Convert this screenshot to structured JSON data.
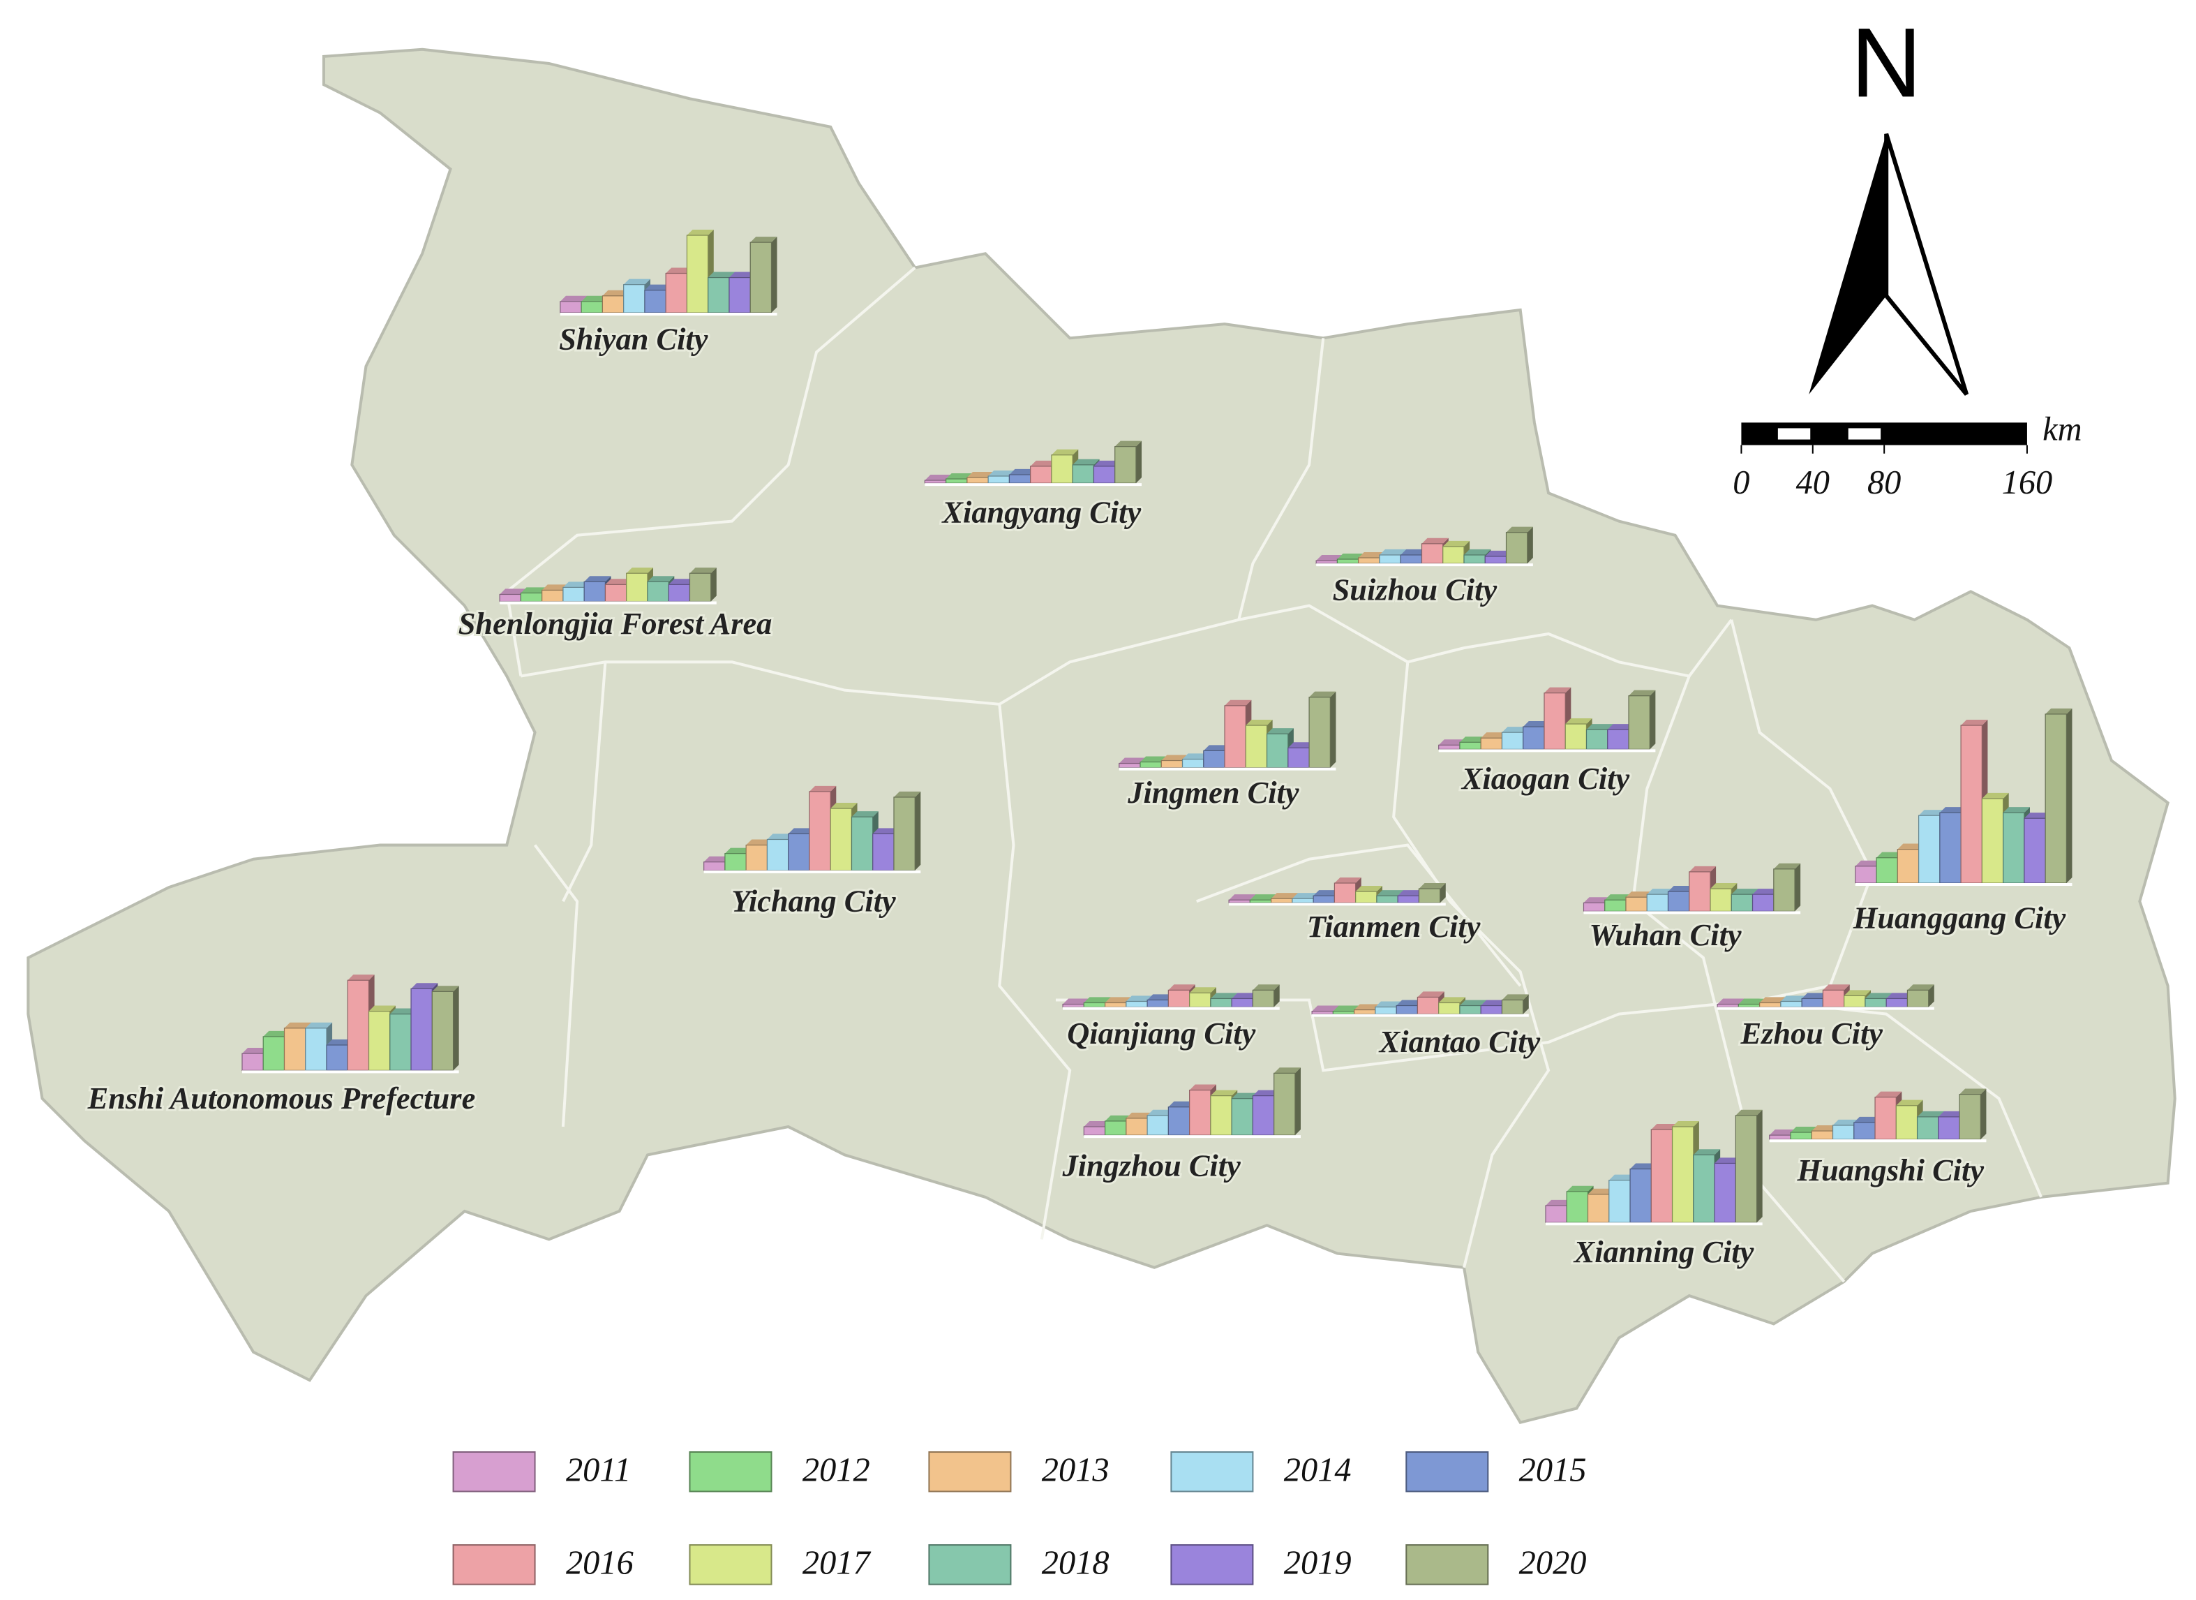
{
  "north": "N",
  "scale_bar": {
    "unit": "km",
    "ticks": [
      0,
      40,
      80,
      160
    ]
  },
  "legend": {
    "items": [
      {
        "label": "2011",
        "color": "#d79fd0"
      },
      {
        "label": "2012",
        "color": "#8fdc8b"
      },
      {
        "label": "2013",
        "color": "#f2c38c"
      },
      {
        "label": "2014",
        "color": "#a9dff2"
      },
      {
        "label": "2015",
        "color": "#7e98d4"
      },
      {
        "label": "2016",
        "color": "#eda2a6"
      },
      {
        "label": "2017",
        "color": "#d8e88a"
      },
      {
        "label": "2018",
        "color": "#86c7ac"
      },
      {
        "label": "2019",
        "color": "#9a84dc"
      },
      {
        "label": "2020",
        "color": "#aab98a"
      }
    ]
  },
  "regions": [
    {
      "name": "Shiyan City",
      "values": [
        8,
        8,
        12,
        20,
        16,
        28,
        55,
        25,
        25,
        50
      ]
    },
    {
      "name": "Xiangyang City",
      "values": [
        2,
        3,
        4,
        5,
        6,
        12,
        20,
        13,
        12,
        26
      ]
    },
    {
      "name": "Shenlongjia Forest Area",
      "values": [
        5,
        6,
        8,
        10,
        14,
        12,
        20,
        14,
        12,
        20
      ]
    },
    {
      "name": "Suizhou City",
      "values": [
        2,
        3,
        4,
        6,
        6,
        14,
        12,
        6,
        5,
        22
      ]
    },
    {
      "name": "Jingmen City",
      "values": [
        3,
        4,
        5,
        6,
        12,
        44,
        30,
        24,
        14,
        50
      ]
    },
    {
      "name": "Xiaogan City",
      "values": [
        3,
        5,
        8,
        12,
        16,
        40,
        18,
        14,
        14,
        38
      ]
    },
    {
      "name": "Yichang City",
      "values": [
        6,
        12,
        18,
        22,
        26,
        56,
        44,
        38,
        26,
        52
      ]
    },
    {
      "name": "Huanggang City",
      "values": [
        12,
        18,
        24,
        48,
        50,
        112,
        60,
        50,
        46,
        120
      ]
    },
    {
      "name": "Tianmen City",
      "values": [
        2,
        2,
        3,
        3,
        5,
        14,
        8,
        5,
        5,
        10
      ]
    },
    {
      "name": "Wuhan City",
      "values": [
        6,
        8,
        10,
        12,
        14,
        28,
        16,
        12,
        12,
        30
      ]
    },
    {
      "name": "Enshi Autonomous Prefecture",
      "values": [
        12,
        24,
        30,
        30,
        18,
        64,
        42,
        40,
        58,
        56
      ]
    },
    {
      "name": "Qianjiang City",
      "values": [
        2,
        3,
        3,
        4,
        5,
        12,
        10,
        6,
        6,
        12
      ]
    },
    {
      "name": "Xiantao City",
      "values": [
        2,
        2,
        3,
        5,
        6,
        12,
        8,
        6,
        6,
        10
      ]
    },
    {
      "name": "Ezhou City",
      "values": [
        2,
        2,
        3,
        4,
        6,
        12,
        8,
        6,
        6,
        12
      ]
    },
    {
      "name": "Jingzhou City",
      "values": [
        6,
        10,
        12,
        14,
        20,
        32,
        28,
        26,
        28,
        44
      ]
    },
    {
      "name": "Huangshi City",
      "values": [
        3,
        5,
        6,
        10,
        12,
        30,
        24,
        16,
        16,
        32
      ]
    },
    {
      "name": "Xianning City",
      "values": [
        12,
        22,
        20,
        30,
        38,
        66,
        68,
        48,
        42,
        76
      ]
    }
  ]
}
